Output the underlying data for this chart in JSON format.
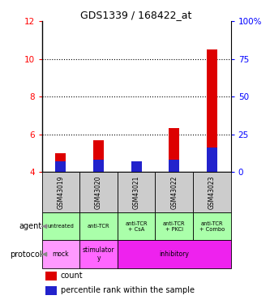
{
  "title": "GDS1339 / 168422_at",
  "samples": [
    "GSM43019",
    "GSM43020",
    "GSM43021",
    "GSM43022",
    "GSM43023"
  ],
  "count_values": [
    5.0,
    5.7,
    4.45,
    6.35,
    10.5
  ],
  "percentile_values": [
    4.55,
    4.65,
    4.55,
    4.65,
    5.3
  ],
  "ylim_left": [
    4,
    12
  ],
  "ylim_right": [
    0,
    100
  ],
  "yticks_left": [
    4,
    6,
    8,
    10,
    12
  ],
  "yticks_right": [
    0,
    25,
    50,
    75,
    100
  ],
  "right_tick_labels": [
    "0",
    "25",
    "50",
    "75",
    "100%"
  ],
  "count_color": "#dd0000",
  "percentile_color": "#2222cc",
  "agent_labels": [
    "untreated",
    "anti-TCR",
    "anti-TCR\n+ CsA",
    "anti-TCR\n+ PKCi",
    "anti-TCR\n+ Combo"
  ],
  "agent_bg_color": "#aaffaa",
  "sample_bg_color": "#cccccc",
  "dotted_yticks": [
    6,
    8,
    10
  ],
  "legend_count_label": "count",
  "legend_percentile_label": "percentile rank within the sample",
  "bar_bottom": 4.0,
  "protocol_sections": [
    {
      "start": 0,
      "end": 1,
      "label": "mock",
      "color": "#ff99ff"
    },
    {
      "start": 1,
      "end": 2,
      "label": "stimulator\ny",
      "color": "#ff66ff"
    },
    {
      "start": 2,
      "end": 5,
      "label": "inhibitory",
      "color": "#ee22ee"
    }
  ]
}
